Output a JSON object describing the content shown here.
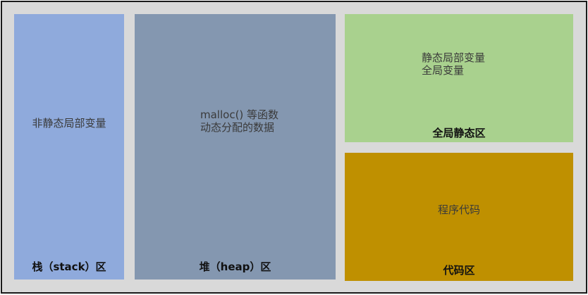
{
  "regions": {
    "stack": {
      "title": "栈（stack）区",
      "lines": [
        "非静态局部变量"
      ],
      "color": "#8faadc"
    },
    "heap": {
      "title": "堆（heap）区",
      "lines": [
        "malloc() 等函数",
        "动态分配的数据"
      ],
      "color": "#8497b0"
    },
    "static": {
      "title": "全局静态区",
      "lines": [
        "静态局部变量",
        "全局变量"
      ],
      "color": "#a9d18e"
    },
    "code": {
      "title": "代码区",
      "lines": [
        "程序代码"
      ],
      "color": "#bf9000"
    }
  }
}
